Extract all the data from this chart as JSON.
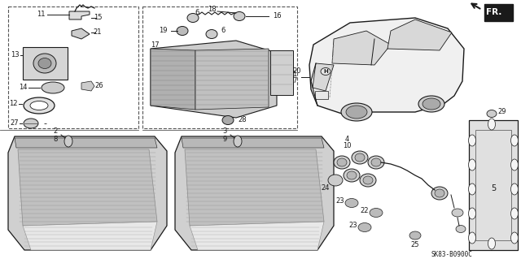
{
  "background_color": "#ffffff",
  "diagram_code": "SK83-B0900C",
  "figsize": [
    6.4,
    3.19
  ],
  "dpi": 100
}
